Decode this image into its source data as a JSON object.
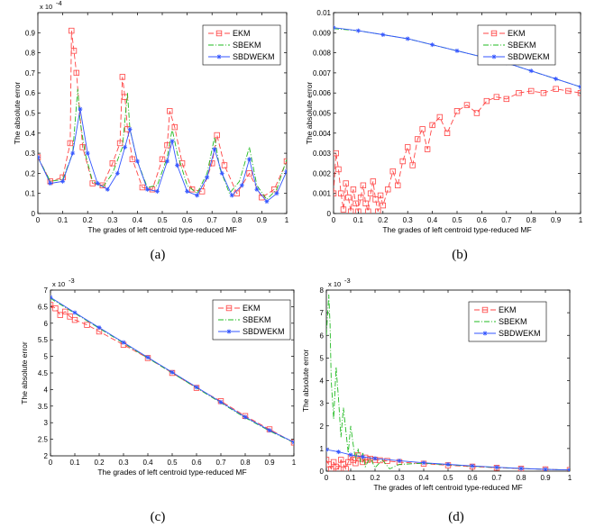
{
  "chart_data": [
    {
      "panel": "a",
      "type": "line",
      "caption": "(a)",
      "xlabel": "The grades of left centroid type-reduced MF",
      "ylabel": "The absolute error",
      "exponent": "x 10",
      "exponent_power": "-4",
      "xlim": [
        0,
        1
      ],
      "ylim": [
        0,
        1
      ],
      "xticks": [
        0,
        0.1,
        0.2,
        0.3,
        0.4,
        0.5,
        0.6,
        0.7,
        0.8,
        0.9,
        1
      ],
      "xtick_labels": [
        "0",
        "0.1",
        "0.2",
        "0.3",
        "0.4",
        "0.5",
        "0.6",
        "0.7",
        "0.8",
        "0.9",
        "1"
      ],
      "yticks": [
        0,
        0.1,
        0.2,
        0.3,
        0.4,
        0.5,
        0.6,
        0.7,
        0.8,
        0.9
      ],
      "ytick_labels": [
        "0",
        "0.1",
        "0.2",
        "0.3",
        "0.4",
        "0.5",
        "0.6",
        "0.7",
        "0.8",
        "0.9"
      ],
      "legend": [
        "EKM",
        "SBEKM",
        "SBDWEKM"
      ],
      "series": [
        {
          "name": "EKM",
          "color": "#ff4444",
          "dash": "6,3",
          "marker": "square",
          "x": [
            0,
            0.05,
            0.1,
            0.13,
            0.135,
            0.145,
            0.155,
            0.18,
            0.22,
            0.26,
            0.3,
            0.33,
            0.34,
            0.35,
            0.36,
            0.38,
            0.42,
            0.46,
            0.5,
            0.52,
            0.53,
            0.55,
            0.58,
            0.62,
            0.66,
            0.7,
            0.72,
            0.75,
            0.8,
            0.85,
            0.9,
            0.95,
            1
          ],
          "y": [
            0.28,
            0.16,
            0.18,
            0.35,
            0.91,
            0.81,
            0.7,
            0.33,
            0.15,
            0.14,
            0.25,
            0.35,
            0.68,
            0.58,
            0.42,
            0.27,
            0.13,
            0.12,
            0.27,
            0.34,
            0.51,
            0.43,
            0.25,
            0.12,
            0.11,
            0.25,
            0.39,
            0.24,
            0.1,
            0.2,
            0.08,
            0.12,
            0.26
          ]
        },
        {
          "name": "SBEKM",
          "color": "#22bb22",
          "dash": "6,2,1,2",
          "marker": "none",
          "x": [
            0,
            0.05,
            0.1,
            0.14,
            0.16,
            0.17,
            0.19,
            0.22,
            0.26,
            0.3,
            0.34,
            0.36,
            0.37,
            0.4,
            0.44,
            0.48,
            0.52,
            0.54,
            0.56,
            0.6,
            0.64,
            0.68,
            0.71,
            0.73,
            0.77,
            0.81,
            0.85,
            0.88,
            0.92,
            0.96,
            1
          ],
          "y": [
            0.28,
            0.16,
            0.17,
            0.3,
            0.62,
            0.46,
            0.3,
            0.16,
            0.13,
            0.2,
            0.33,
            0.6,
            0.42,
            0.26,
            0.13,
            0.14,
            0.28,
            0.42,
            0.3,
            0.14,
            0.1,
            0.2,
            0.38,
            0.23,
            0.1,
            0.16,
            0.33,
            0.14,
            0.07,
            0.12,
            0.27
          ]
        },
        {
          "name": "SBDWEKM",
          "color": "#3355ff",
          "dash": "",
          "marker": "star",
          "x": [
            0,
            0.05,
            0.1,
            0.14,
            0.17,
            0.2,
            0.24,
            0.28,
            0.32,
            0.35,
            0.37,
            0.4,
            0.44,
            0.48,
            0.52,
            0.54,
            0.56,
            0.6,
            0.64,
            0.68,
            0.71,
            0.74,
            0.78,
            0.82,
            0.85,
            0.88,
            0.92,
            0.96,
            1
          ],
          "y": [
            0.28,
            0.15,
            0.16,
            0.3,
            0.52,
            0.3,
            0.15,
            0.12,
            0.2,
            0.33,
            0.42,
            0.26,
            0.12,
            0.11,
            0.26,
            0.36,
            0.24,
            0.11,
            0.09,
            0.18,
            0.32,
            0.2,
            0.09,
            0.14,
            0.27,
            0.12,
            0.06,
            0.1,
            0.21
          ]
        }
      ]
    },
    {
      "panel": "b",
      "type": "line",
      "caption": "(b)",
      "xlabel": "The grades of left centroid type-reduced MF",
      "ylabel": "The absolute error",
      "exponent": "",
      "exponent_power": "",
      "xlim": [
        0,
        1
      ],
      "ylim": [
        0,
        0.01
      ],
      "xticks": [
        0,
        0.1,
        0.2,
        0.3,
        0.4,
        0.5,
        0.6,
        0.7,
        0.8,
        0.9,
        1
      ],
      "xtick_labels": [
        "0",
        "0.1",
        "0.2",
        "0.3",
        "0.4",
        "0.5",
        "0.6",
        "0.7",
        "0.8",
        "0.9",
        "1"
      ],
      "yticks": [
        0,
        0.001,
        0.002,
        0.003,
        0.004,
        0.005,
        0.006,
        0.007,
        0.008,
        0.009,
        0.01
      ],
      "ytick_labels": [
        "0",
        "0.001",
        "0.002",
        "0.003",
        "0.004",
        "0.005",
        "0.006",
        "0.007",
        "0.008",
        "0.009",
        "0.01"
      ],
      "legend": [
        "EKM",
        "SBEKM",
        "SBDWEKM"
      ],
      "series": [
        {
          "name": "EKM",
          "color": "#ff4444",
          "dash": "6,3",
          "marker": "square",
          "x": [
            0,
            0.01,
            0.02,
            0.03,
            0.04,
            0.05,
            0.06,
            0.07,
            0.08,
            0.09,
            0.1,
            0.11,
            0.12,
            0.13,
            0.14,
            0.15,
            0.16,
            0.17,
            0.18,
            0.19,
            0.2,
            0.22,
            0.24,
            0.26,
            0.28,
            0.3,
            0.32,
            0.34,
            0.36,
            0.38,
            0.4,
            0.43,
            0.46,
            0.5,
            0.54,
            0.58,
            0.62,
            0.66,
            0.7,
            0.75,
            0.8,
            0.85,
            0.9,
            0.95,
            1
          ],
          "y": [
            0.001,
            0.003,
            0.0022,
            0.001,
            0.0002,
            0.0015,
            0.0008,
            0.0001,
            0.0012,
            0.0005,
            0.0001,
            0.0008,
            0.0014,
            0.0005,
            0.0001,
            0.001,
            0.0016,
            0.0007,
            0.0001,
            0.0009,
            0.0004,
            0.0012,
            0.0021,
            0.0014,
            0.0026,
            0.0033,
            0.0024,
            0.0037,
            0.0042,
            0.0032,
            0.0044,
            0.0048,
            0.004,
            0.0051,
            0.0054,
            0.005,
            0.0056,
            0.0058,
            0.0057,
            0.006,
            0.0061,
            0.006,
            0.0062,
            0.0061,
            0.006
          ]
        },
        {
          "name": "SBEKM",
          "color": "#22bb22",
          "dash": "6,2,1,2",
          "marker": "none",
          "x": [
            0,
            0.1,
            0.2,
            0.3,
            0.4,
            0.5,
            0.6,
            0.7,
            0.8,
            0.9,
            1
          ],
          "y": [
            0.0092,
            0.0091,
            0.0089,
            0.0087,
            0.0084,
            0.0081,
            0.0078,
            0.0075,
            0.0071,
            0.0067,
            0.0063
          ]
        },
        {
          "name": "SBDWEKM",
          "color": "#3355ff",
          "dash": "",
          "marker": "star",
          "x": [
            0,
            0.1,
            0.2,
            0.3,
            0.4,
            0.5,
            0.6,
            0.7,
            0.8,
            0.9,
            1
          ],
          "y": [
            0.00925,
            0.0091,
            0.0089,
            0.0087,
            0.0084,
            0.0081,
            0.0078,
            0.0075,
            0.0071,
            0.0067,
            0.0063
          ]
        }
      ]
    },
    {
      "panel": "c",
      "type": "line",
      "caption": "(c)",
      "xlabel": "The grades of left centroid type-reduced MF",
      "ylabel": "The absolute error",
      "exponent": "x 10",
      "exponent_power": "-3",
      "xlim": [
        0,
        1
      ],
      "ylim": [
        2,
        7
      ],
      "xticks": [
        0,
        0.1,
        0.2,
        0.3,
        0.4,
        0.5,
        0.6,
        0.7,
        0.8,
        0.9,
        1
      ],
      "xtick_labels": [
        "0",
        "0.1",
        "0.2",
        "0.3",
        "0.4",
        "0.5",
        "0.6",
        "0.7",
        "0.8",
        "0.9",
        "1"
      ],
      "yticks": [
        2,
        2.5,
        3,
        3.5,
        4,
        4.5,
        5,
        5.5,
        6,
        6.5,
        7
      ],
      "ytick_labels": [
        "2",
        "2.5",
        "3",
        "3.5",
        "4",
        "4.5",
        "5",
        "5.5",
        "6",
        "6.5",
        "7"
      ],
      "legend": [
        "EKM",
        "SBEKM",
        "SBDWEKM"
      ],
      "series": [
        {
          "name": "EKM",
          "color": "#ff4444",
          "dash": "6,3",
          "marker": "square",
          "x": [
            0,
            0.02,
            0.04,
            0.06,
            0.08,
            0.1,
            0.15,
            0.2,
            0.3,
            0.4,
            0.5,
            0.6,
            0.7,
            0.8,
            0.9,
            1
          ],
          "y": [
            6.55,
            6.45,
            6.25,
            6.35,
            6.2,
            6.1,
            5.95,
            5.75,
            5.35,
            4.95,
            4.5,
            4.05,
            3.65,
            3.2,
            2.8,
            2.4
          ]
        },
        {
          "name": "SBEKM",
          "color": "#22bb22",
          "dash": "6,2,1,2",
          "marker": "none",
          "x": [
            0,
            0.1,
            0.2,
            0.3,
            0.4,
            0.5,
            0.6,
            0.7,
            0.8,
            0.9,
            1
          ],
          "y": [
            6.75,
            6.3,
            5.85,
            5.4,
            4.95,
            4.5,
            4.05,
            3.6,
            3.15,
            2.75,
            2.4
          ]
        },
        {
          "name": "SBDWEKM",
          "color": "#3355ff",
          "dash": "",
          "marker": "star",
          "x": [
            0,
            0.1,
            0.2,
            0.3,
            0.4,
            0.5,
            0.6,
            0.7,
            0.8,
            0.9,
            1
          ],
          "y": [
            6.78,
            6.32,
            5.87,
            5.42,
            4.97,
            4.52,
            4.07,
            3.62,
            3.17,
            2.77,
            2.41
          ]
        }
      ]
    },
    {
      "panel": "d",
      "type": "line",
      "caption": "(d)",
      "xlabel": "The grades of left centroid type-reduced MF",
      "ylabel": "The absolute error",
      "exponent": "x 10",
      "exponent_power": "-3",
      "xlim": [
        0,
        1
      ],
      "ylim": [
        0,
        8
      ],
      "xticks": [
        0,
        0.1,
        0.2,
        0.3,
        0.4,
        0.5,
        0.6,
        0.7,
        0.8,
        0.9,
        1
      ],
      "xtick_labels": [
        "0",
        "0.1",
        "0.2",
        "0.3",
        "0.4",
        "0.5",
        "0.6",
        "0.7",
        "0.8",
        "0.9",
        "1"
      ],
      "yticks": [
        0,
        1,
        2,
        3,
        4,
        5,
        6,
        7,
        8
      ],
      "ytick_labels": [
        "0",
        "1",
        "2",
        "3",
        "4",
        "5",
        "6",
        "7",
        "8"
      ],
      "legend": [
        "EKM",
        "SBEKM",
        "SBDWEKM"
      ],
      "series": [
        {
          "name": "EKM",
          "color": "#ff4444",
          "dash": "6,3",
          "marker": "square",
          "x": [
            0,
            0.01,
            0.02,
            0.03,
            0.04,
            0.05,
            0.06,
            0.07,
            0.08,
            0.09,
            0.1,
            0.11,
            0.12,
            0.13,
            0.14,
            0.15,
            0.16,
            0.17,
            0.18,
            0.2,
            0.22,
            0.25,
            0.3,
            0.4,
            0.5,
            0.6,
            0.7,
            0.8,
            0.9,
            1
          ],
          "y": [
            0.5,
            0.3,
            0.1,
            0.4,
            0.2,
            0.1,
            0.5,
            0.3,
            0.1,
            0.4,
            0.6,
            0.5,
            0.35,
            0.7,
            0.55,
            0.4,
            0.6,
            0.5,
            0.55,
            0.5,
            0.48,
            0.45,
            0.4,
            0.33,
            0.26,
            0.2,
            0.15,
            0.11,
            0.08,
            0.05
          ]
        },
        {
          "name": "SBEKM",
          "color": "#22bb22",
          "dash": "6,2,1,2",
          "marker": "none",
          "x": [
            0,
            0.01,
            0.015,
            0.02,
            0.03,
            0.04,
            0.05,
            0.06,
            0.07,
            0.08,
            0.09,
            0.1,
            0.11,
            0.12,
            0.13,
            0.14,
            0.15,
            0.16,
            0.18,
            0.2,
            0.23,
            0.26,
            0.3,
            0.4,
            0.5,
            0.6,
            0.7,
            0.8,
            0.9,
            1
          ],
          "y": [
            6.0,
            7.8,
            6.5,
            4.0,
            2.3,
            4.6,
            3.2,
            1.5,
            2.8,
            1.8,
            0.8,
            2.0,
            1.2,
            0.5,
            1.0,
            0.4,
            0.8,
            0.2,
            0.6,
            0.15,
            0.5,
            0.1,
            0.3,
            0.35,
            0.28,
            0.22,
            0.16,
            0.12,
            0.08,
            0.05
          ]
        },
        {
          "name": "SBDWEKM",
          "color": "#3355ff",
          "dash": "",
          "marker": "star",
          "x": [
            0,
            0.05,
            0.1,
            0.15,
            0.2,
            0.3,
            0.4,
            0.5,
            0.6,
            0.7,
            0.8,
            0.9,
            1
          ],
          "y": [
            0.95,
            0.85,
            0.72,
            0.63,
            0.56,
            0.46,
            0.37,
            0.3,
            0.23,
            0.17,
            0.12,
            0.08,
            0.05
          ]
        }
      ]
    }
  ]
}
